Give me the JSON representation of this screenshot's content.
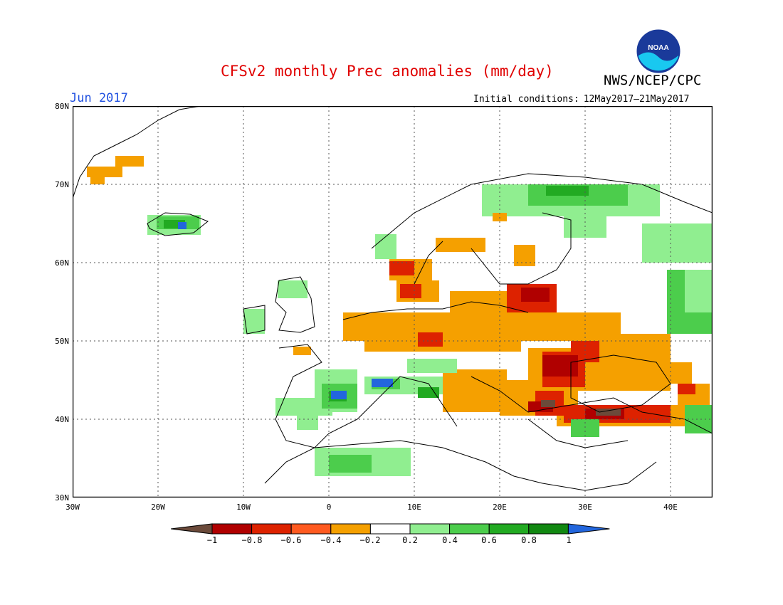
{
  "title": "CFSv2 monthly Prec anomalies (mm/day)",
  "organization": "NWS/NCEP/CPC",
  "logo_text": "NOAA",
  "forecast_month": "Jun 2017",
  "initial_conditions": {
    "label": "Initial conditions:",
    "range": "12May2017–21May2017"
  },
  "axes": {
    "lat_labels": [
      "80N",
      "70N",
      "60N",
      "50N",
      "40N",
      "30N"
    ],
    "lon_labels": [
      "30W",
      "20W",
      "10W",
      "0",
      "10E",
      "20E",
      "30E",
      "40E"
    ],
    "lon_range": [
      -30,
      45
    ],
    "lat_range": [
      30,
      80
    ]
  },
  "colorbar": {
    "labels": [
      "−1",
      "−0.8",
      "−0.6",
      "−0.4",
      "−0.2",
      "0.2",
      "0.4",
      "0.6",
      "0.8",
      "1"
    ],
    "colors": [
      "#6b4a3a",
      "#b00000",
      "#dd2200",
      "#ff5a20",
      "#f5a000",
      "#ffffff",
      "#90ee90",
      "#4ccd4c",
      "#22aa22",
      "#118811",
      "#2266dd"
    ]
  },
  "chart_data": {
    "type": "heatmap",
    "variable": "Precipitation anomaly (mm/day)",
    "anomaly_regions": [
      {
        "region": "Greenland east coast",
        "anomaly": -0.4
      },
      {
        "region": "Iceland",
        "anomaly": 0.6
      },
      {
        "region": "Iceland central",
        "anomaly": 1.0
      },
      {
        "region": "Northern Scandinavia / Kola",
        "anomaly": 0.4
      },
      {
        "region": "Southern Scandinavia",
        "anomaly": -0.4
      },
      {
        "region": "Baltic / Belarus",
        "anomaly": -0.6
      },
      {
        "region": "Germany / Poland",
        "anomaly": -0.4
      },
      {
        "region": "Ukraine / Moldova",
        "anomaly": -0.8
      },
      {
        "region": "Northern Turkey",
        "anomaly": -0.8
      },
      {
        "region": "Black Sea south coast",
        "anomaly": -1.0
      },
      {
        "region": "Northern Spain / Pyrenees",
        "anomaly": 0.6
      },
      {
        "region": "Alps",
        "anomaly": 1.0
      },
      {
        "region": "North Africa coast",
        "anomaly": 0.4
      },
      {
        "region": "Western Russia east",
        "anomaly": 0.4
      },
      {
        "region": "Scotland",
        "anomaly": 0.4
      },
      {
        "region": "Caucasus",
        "anomaly": -0.6
      }
    ]
  }
}
